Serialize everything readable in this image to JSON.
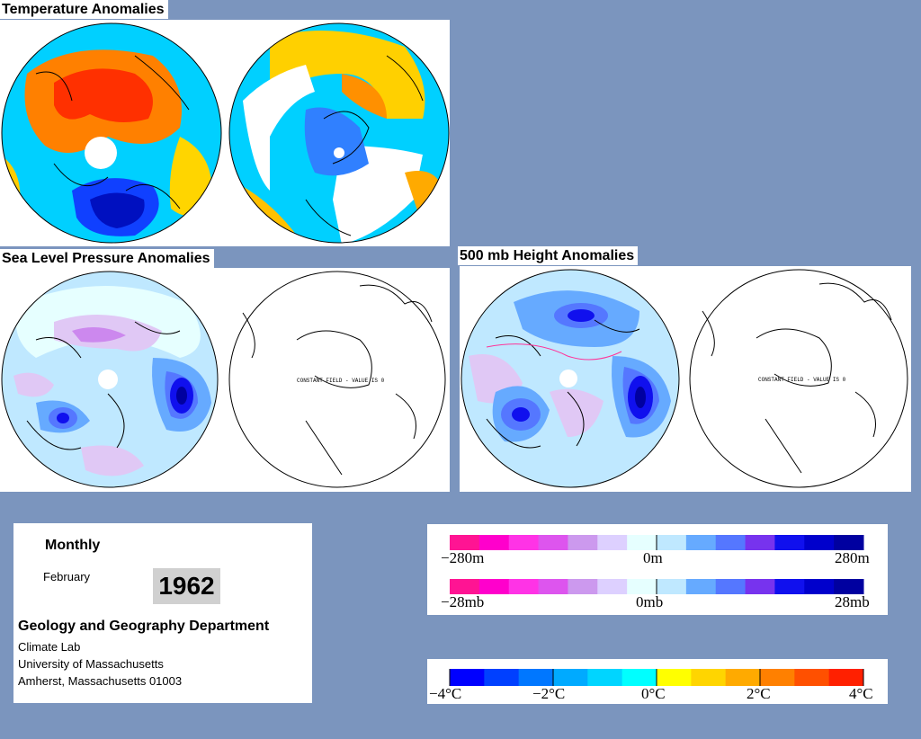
{
  "sections": {
    "temperature_title": "Temperature Anomalies",
    "slp_title": "Sea Level Pressure Anomalies",
    "height_title": "500 mb Height Anomalies"
  },
  "map_panels": {
    "constant_field_text": "CONSTANT FIELD - VALUE IS 0"
  },
  "info": {
    "period": "Monthly",
    "month": "February",
    "year": "1962",
    "department": "Geology and Geography Department",
    "lab": "Climate Lab",
    "university": "University of Massachusetts",
    "city": "Amherst, Massachusetts 01003"
  },
  "legends": {
    "height": {
      "min": "−280m",
      "mid": "0m",
      "max": "280m"
    },
    "pressure": {
      "min": "−28mb",
      "mid": "0mb",
      "max": "28mb"
    },
    "temperature": {
      "t1": "−4°C",
      "t2": "−2°C",
      "t3": "0°C",
      "t4": "2°C",
      "t5": "4°C"
    }
  },
  "colors": {
    "background": "#7b95be",
    "anomaly_scale": [
      "#ff1493",
      "#ff00cc",
      "#ff33e6",
      "#dd55ee",
      "#cc99ee",
      "#ddd0ff",
      "#e6ffff",
      "#bfe8ff",
      "#66aaff",
      "#5577ff",
      "#7733ee",
      "#1010ee",
      "#0000cc",
      "#0000a0"
    ],
    "temperature_scale": [
      "#0000ff",
      "#0040ff",
      "#0077ff",
      "#00aaff",
      "#00d5ff",
      "#00ffff",
      "#ffff00",
      "#ffd500",
      "#ffaa00",
      "#ff8000",
      "#ff5000",
      "#ff2000"
    ]
  }
}
